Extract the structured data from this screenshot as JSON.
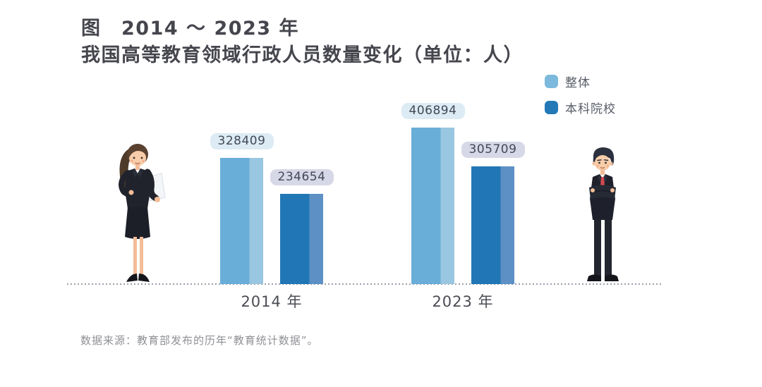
{
  "title": {
    "line1": "图　2014 ～ 2023 年",
    "line2": "我国高等教育领域行政人员数量变化（单位：人）"
  },
  "legend": [
    {
      "key": "overall",
      "label": "整体",
      "color": "#7cb9dc"
    },
    {
      "key": "undergraduate",
      "label": "本科院校",
      "color": "#2379b7"
    }
  ],
  "chart_data": {
    "type": "bar",
    "title": "2014 ～ 2023 年我国高等教育领域行政人员数量变化（单位：人）",
    "categories": [
      "2014 年",
      "2023 年"
    ],
    "series": [
      {
        "key": "overall",
        "name": "整体",
        "values": [
          328409,
          406894
        ],
        "color": "#69aed8",
        "color_light": "#99c6e0",
        "label_bg": "#dcebf4"
      },
      {
        "key": "undergraduate",
        "name": "本科院校",
        "values": [
          234654,
          305709
        ],
        "color": "#2177b5",
        "color_light": "#5d90c5",
        "label_bg": "#d7d8e7"
      }
    ],
    "ylim": [
      0,
      406894
    ],
    "grid": false,
    "legend_position": "top-right",
    "value_labels_shown": true,
    "unit": "人"
  },
  "source": {
    "text": "数据来源：教育部发布的历年“教育统计数据”。"
  },
  "figures": {
    "left": "businesswoman",
    "right": "businessman"
  }
}
